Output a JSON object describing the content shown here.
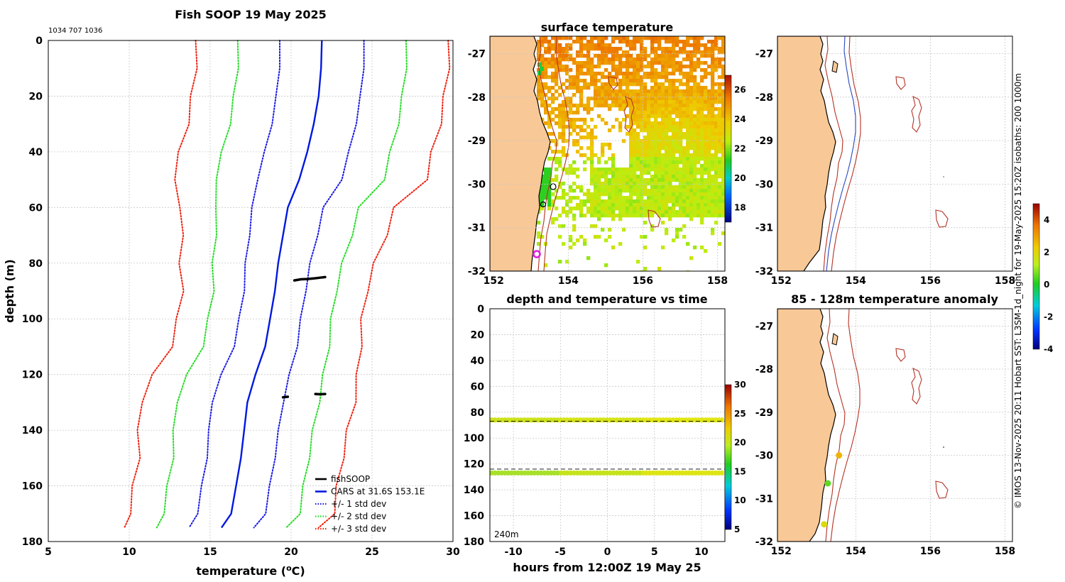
{
  "figure": {
    "title": "Fish SOOP 19 May 2025",
    "ids": "1034 707 1036",
    "credit": "© IMOS 13-Nov-2025 20:11 Hobart SST: L3SM-1d_night for 19-May-2025 15:20Z isobaths: 200  1000m"
  },
  "chart_data": [
    {
      "id": "profile",
      "type": "line",
      "title": "",
      "xlabel": "temperature (°C)",
      "xlabel_main": "temperature (",
      "xlabel_sup": "o",
      "xlabel_end": "C)",
      "ylabel": "depth (m)",
      "xlim": [
        5,
        30
      ],
      "ylim": [
        0,
        180
      ],
      "xticks": [
        5,
        10,
        15,
        20,
        25,
        30
      ],
      "yticks": [
        0,
        20,
        40,
        60,
        80,
        100,
        120,
        140,
        160,
        180
      ],
      "depths": [
        0,
        10,
        20,
        30,
        40,
        50,
        60,
        70,
        80,
        90,
        100,
        110,
        120,
        130,
        140,
        150,
        160,
        170,
        175
      ],
      "cars_mean": [
        21.9,
        21.85,
        21.7,
        21.4,
        21.0,
        20.5,
        19.8,
        19.5,
        19.2,
        19.0,
        18.7,
        18.4,
        17.8,
        17.3,
        17.1,
        16.9,
        16.6,
        16.3,
        15.7
      ],
      "std": [
        2.6,
        2.6,
        2.6,
        2.6,
        2.6,
        2.6,
        2.2,
        2.1,
        2.0,
        1.9,
        1.9,
        1.95,
        2.1,
        2.2,
        2.15,
        2.1,
        2.1,
        2.1,
        2.0
      ],
      "fishsoop_segments": [
        {
          "temps": [
            20.2,
            20.6,
            21.0,
            21.4,
            21.8,
            22.1
          ],
          "depths": [
            86.2,
            85.8,
            85.7,
            85.5,
            85.2,
            85.0
          ]
        },
        {
          "temps": [
            19.5,
            19.8
          ],
          "depths": [
            128.2,
            128.0
          ]
        },
        {
          "temps": [
            21.5,
            21.8,
            22.1
          ],
          "depths": [
            127.0,
            127.1,
            127.0
          ]
        }
      ],
      "legend": [
        {
          "label": "fishSOOP",
          "color": "#000000",
          "style": "solid"
        },
        {
          "label": "CARS at 31.6S 153.1E",
          "color": "#0018e0",
          "style": "solid"
        },
        {
          "label": "+/- 1 std dev",
          "color": "#1a1ae6",
          "style": "dotted"
        },
        {
          "label": "+/- 2 std dev",
          "color": "#22dd22",
          "style": "dotted"
        },
        {
          "label": "+/- 3 std dev",
          "color": "#ee2211",
          "style": "dotted"
        }
      ]
    },
    {
      "id": "sst_map",
      "type": "heatmap",
      "title": "surface temperature",
      "xticks": [
        152,
        154,
        156,
        158
      ],
      "yticks": [
        -27,
        -28,
        -29,
        -30,
        -31,
        -32
      ],
      "xlim": [
        151.9,
        158.2
      ],
      "ylim": [
        -32,
        -26.5
      ],
      "colorbar": {
        "min": 17,
        "max": 27,
        "ticks": [
          18,
          20,
          22,
          24,
          26
        ]
      }
    },
    {
      "id": "depth_time",
      "type": "scatter",
      "title": "depth and temperature vs time",
      "xlabel": "hours from 12:00Z 19 May 25",
      "xlim": [
        -12.5,
        12.5
      ],
      "ylim": [
        0,
        180
      ],
      "xticks": [
        -10,
        -5,
        0,
        5,
        10
      ],
      "yticks": [
        0,
        20,
        40,
        60,
        80,
        100,
        120,
        140,
        160,
        180
      ],
      "dashed_depths": [
        87,
        124
      ],
      "bands": [
        {
          "depth": 86,
          "temp": 23.5
        },
        {
          "depth": 127,
          "temp": 22.5
        }
      ],
      "annotation": "240m",
      "colorbar": {
        "min": 5,
        "max": 30,
        "ticks": [
          5,
          10,
          15,
          20,
          25,
          30
        ]
      }
    },
    {
      "id": "bathy_map",
      "type": "line",
      "title": "",
      "xticks": [
        152,
        154,
        156,
        158
      ],
      "yticks": [
        -27,
        -28,
        -29,
        -30,
        -31,
        -32
      ]
    },
    {
      "id": "anomaly_map",
      "type": "scatter",
      "title": "85 - 128m temperature anomaly",
      "xticks": [
        152,
        154,
        156,
        158
      ],
      "yticks": [
        -27,
        -28,
        -29,
        -30,
        -31,
        -32
      ],
      "points": [
        {
          "lon": 153.55,
          "lat": -30.0,
          "anomaly": 2.7
        },
        {
          "lon": 153.25,
          "lat": -30.65,
          "anomaly": 0.5
        },
        {
          "lon": 153.15,
          "lat": -31.6,
          "anomaly": 1.8
        }
      ],
      "colorbar": {
        "min": -4,
        "max": 5,
        "ticks": [
          4,
          2,
          0,
          -2,
          -4
        ]
      }
    }
  ],
  "colors": {
    "land": "#f8c896",
    "isobath_200": "#b43224",
    "isobath_1000": "#2848c0",
    "ship_marker": "#e020e0"
  }
}
